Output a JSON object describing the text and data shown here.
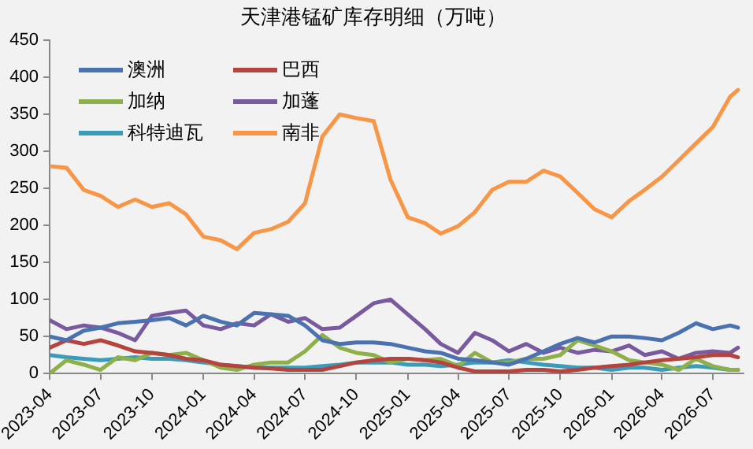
{
  "chart_data": {
    "type": "line",
    "title": "天津港锰矿库存明细（万吨）",
    "x": [
      "2023-04-01",
      "2023-05-01",
      "2023-06-01",
      "2023-07-01",
      "2023-08-01",
      "2023-09-01",
      "2023-10-01",
      "2023-11-01",
      "2023-12-01",
      "2024-01-01",
      "2024-02-01",
      "2024-03-01",
      "2024-04-01",
      "2024-05-01",
      "2024-06-01",
      "2024-07-01",
      "2024-08-01",
      "2024-09-01",
      "2024-10-01",
      "2024-11-01",
      "2024-12-01",
      "2025-01-01",
      "2025-02-01",
      "2025-03-01",
      "2025-04-01",
      "2025-05-01",
      "2025-06-01",
      "2025-07-01",
      "2025-08-01",
      "2025-09-01",
      "2025-10-01",
      "2025-11-01",
      "2025-12-01",
      "2026-01-01",
      "2026-02-01",
      "2026-03-01",
      "2026-04-01",
      "2026-05-01",
      "2026-06-01",
      "2026-07-01",
      "2026-08-01",
      "2026-08-15"
    ],
    "series": [
      {
        "name": "澳洲",
        "color": "#4a72b0",
        "values": [
          50,
          45,
          58,
          62,
          68,
          70,
          72,
          75,
          65,
          78,
          70,
          65,
          82,
          80,
          78,
          65,
          45,
          40,
          42,
          42,
          40,
          35,
          30,
          28,
          20,
          18,
          15,
          12,
          20,
          30,
          40,
          48,
          42,
          50,
          50,
          48,
          45,
          55,
          68,
          60,
          65,
          62
        ]
      },
      {
        "name": "巴西",
        "color": "#b5443f",
        "values": [
          35,
          45,
          40,
          45,
          38,
          30,
          28,
          25,
          20,
          18,
          12,
          10,
          8,
          7,
          5,
          5,
          5,
          10,
          15,
          18,
          20,
          20,
          18,
          15,
          8,
          3,
          3,
          3,
          5,
          5,
          3,
          5,
          8,
          10,
          12,
          15,
          18,
          20,
          22,
          25,
          25,
          22
        ]
      },
      {
        "name": "加纳",
        "color": "#8db04a",
        "values": [
          0,
          18,
          12,
          5,
          22,
          18,
          28,
          25,
          28,
          18,
          8,
          5,
          12,
          15,
          15,
          30,
          52,
          35,
          28,
          25,
          15,
          20,
          18,
          20,
          10,
          28,
          15,
          15,
          20,
          20,
          25,
          45,
          38,
          30,
          18,
          15,
          12,
          5,
          20,
          10,
          5,
          5
        ]
      },
      {
        "name": "加蓬",
        "color": "#7a5a9e",
        "values": [
          72,
          60,
          65,
          62,
          55,
          45,
          78,
          82,
          85,
          65,
          60,
          68,
          65,
          80,
          70,
          75,
          60,
          62,
          78,
          95,
          100,
          80,
          60,
          40,
          28,
          55,
          45,
          30,
          40,
          28,
          35,
          28,
          32,
          30,
          38,
          25,
          30,
          20,
          28,
          30,
          28,
          35
        ]
      },
      {
        "name": "科特迪瓦",
        "color": "#3a9cb8",
        "values": [
          25,
          22,
          20,
          18,
          20,
          22,
          20,
          20,
          18,
          15,
          12,
          10,
          8,
          8,
          8,
          8,
          10,
          12,
          15,
          15,
          15,
          12,
          12,
          10,
          12,
          15,
          15,
          18,
          15,
          12,
          10,
          8,
          8,
          5,
          8,
          8,
          5,
          8,
          10,
          8,
          5,
          5
        ]
      },
      {
        "name": "南非",
        "color": "#f79646",
        "values": [
          280,
          278,
          248,
          240,
          225,
          235,
          225,
          230,
          215,
          185,
          180,
          168,
          190,
          195,
          205,
          230,
          320,
          350,
          345,
          341,
          262,
          211,
          203,
          189,
          199,
          218,
          248,
          259,
          259,
          274,
          266,
          244,
          222,
          211,
          233,
          248,
          266,
          288,
          311,
          333,
          374,
          383
        ]
      }
    ],
    "xlim": [
      "2023-04-01",
      "2026-08-25"
    ],
    "xticks": [
      {
        "value": "2023-04-01",
        "label": "2023-04"
      },
      {
        "value": "2023-07-01",
        "label": "2023-07"
      },
      {
        "value": "2023-10-01",
        "label": "2023-10"
      },
      {
        "value": "2024-01-01",
        "label": "2024-01"
      },
      {
        "value": "2024-04-01",
        "label": "2024-04"
      },
      {
        "value": "2024-07-01",
        "label": "2024-07"
      },
      {
        "value": "2024-10-01",
        "label": "2024-10"
      },
      {
        "value": "2025-01-01",
        "label": "2025-01"
      },
      {
        "value": "2025-04-01",
        "label": "2025-04"
      },
      {
        "value": "2025-07-01",
        "label": "2025-07"
      },
      {
        "value": "2025-10-01",
        "label": "2025-10"
      },
      {
        "value": "2026-01-01",
        "label": "2026-01"
      },
      {
        "value": "2026-04-01",
        "label": "2026-04"
      },
      {
        "value": "2026-07-01",
        "label": "2026-07"
      }
    ],
    "ylim": [
      0,
      450
    ],
    "yticks": [
      0,
      50,
      100,
      150,
      200,
      250,
      300,
      350,
      400,
      450
    ],
    "grid": false,
    "legend": "top left",
    "marker": "none",
    "line_style": "solid"
  }
}
